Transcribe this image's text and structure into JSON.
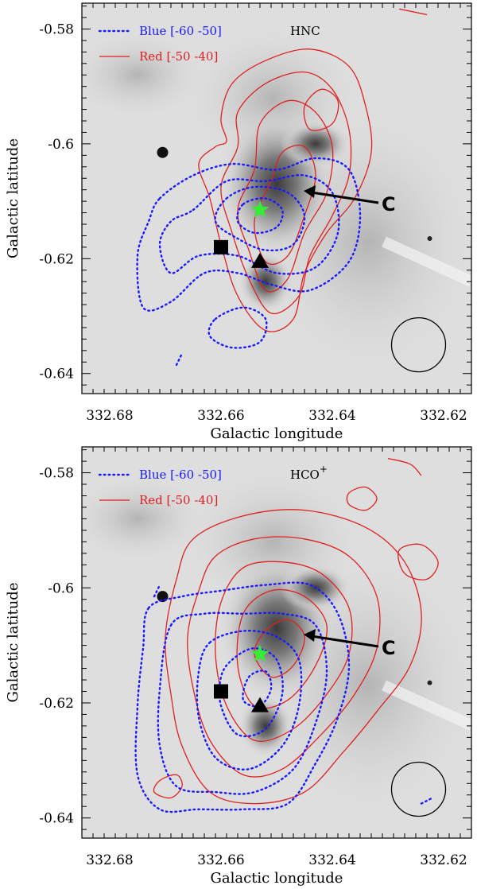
{
  "chart_data": [
    {
      "type": "contour",
      "molecule_main": "HNC",
      "molecule_sup": "",
      "xlabel": "Galactic longitude",
      "ylabel": "Galactic latitude",
      "xlim": [
        332.685,
        332.615
      ],
      "ylim": [
        -0.6435,
        -0.5755
      ],
      "x_ticks": [
        "332.68",
        "332.66",
        "332.64",
        "332.62"
      ],
      "y_ticks": [
        "-0.58",
        "-0.6",
        "-0.62",
        "-0.64"
      ],
      "legend": [
        {
          "label": "Blue [-60 -50]",
          "color": "#1a1aff",
          "style": "dotted"
        },
        {
          "label": "Red [-50 -40]",
          "color": "#e02020",
          "style": "solid"
        }
      ],
      "annotation": "C",
      "markers": [
        {
          "kind": "star",
          "x": 332.653,
          "y": -0.6115,
          "color": "#33ee33"
        },
        {
          "kind": "square",
          "x": 332.66,
          "y": -0.618,
          "color": "#000000"
        },
        {
          "kind": "triangle",
          "x": 332.653,
          "y": -0.6205,
          "color": "#000000"
        }
      ],
      "red_levels": [
        [
          [
            332.659,
            -0.5995
          ],
          [
            332.66,
            -0.5955
          ],
          [
            332.658,
            -0.5895
          ],
          [
            332.652,
            -0.5855
          ],
          [
            332.644,
            -0.5835
          ],
          [
            332.637,
            -0.5865
          ],
          [
            332.634,
            -0.5935
          ],
          [
            332.633,
            -0.6015
          ],
          [
            332.636,
            -0.6095
          ],
          [
            332.641,
            -0.6155
          ],
          [
            332.645,
            -0.6225
          ],
          [
            332.647,
            -0.6305
          ],
          [
            332.652,
            -0.6325
          ],
          [
            332.657,
            -0.6265
          ],
          [
            332.66,
            -0.6175
          ],
          [
            332.662,
            -0.6095
          ],
          [
            332.664,
            -0.6035
          ],
          [
            332.661,
            -0.6005
          ]
        ],
        [
          [
            332.657,
            -0.6005
          ],
          [
            332.657,
            -0.5945
          ],
          [
            332.652,
            -0.5895
          ],
          [
            332.645,
            -0.5875
          ],
          [
            332.64,
            -0.5905
          ],
          [
            332.637,
            -0.5975
          ],
          [
            332.637,
            -0.6055
          ],
          [
            332.64,
            -0.6125
          ],
          [
            332.644,
            -0.6195
          ],
          [
            332.646,
            -0.6265
          ],
          [
            332.651,
            -0.6295
          ],
          [
            332.655,
            -0.6235
          ],
          [
            332.658,
            -0.6155
          ],
          [
            332.66,
            -0.6075
          ]
        ],
        [
          [
            332.654,
            -0.6045
          ],
          [
            332.653,
            -0.5965
          ],
          [
            332.648,
            -0.5925
          ],
          [
            332.643,
            -0.5945
          ],
          [
            332.64,
            -0.6005
          ],
          [
            332.641,
            -0.6085
          ],
          [
            332.645,
            -0.6155
          ],
          [
            332.648,
            -0.6235
          ],
          [
            332.652,
            -0.6255
          ],
          [
            332.655,
            -0.6185
          ],
          [
            332.657,
            -0.6115
          ]
        ],
        [
          [
            332.651,
            -0.6065
          ],
          [
            332.649,
            -0.6015
          ],
          [
            332.645,
            -0.6005
          ],
          [
            332.643,
            -0.6055
          ],
          [
            332.645,
            -0.6125
          ],
          [
            332.648,
            -0.6195
          ],
          [
            332.652,
            -0.6205
          ],
          [
            332.654,
            -0.6135
          ]
        ],
        [
          [
            332.645,
            -0.5935
          ],
          [
            332.642,
            -0.5905
          ],
          [
            332.639,
            -0.5925
          ],
          [
            332.64,
            -0.5965
          ],
          [
            332.644,
            -0.5975
          ]
        ],
        [
          [
            332.623,
            -0.5775
          ],
          [
            332.628,
            -0.5765
          ]
        ]
      ],
      "blue_levels": [
        [
          [
            332.671,
            -0.6095
          ],
          [
            332.665,
            -0.6055
          ],
          [
            332.658,
            -0.6035
          ],
          [
            332.65,
            -0.6045
          ],
          [
            332.643,
            -0.6025
          ],
          [
            332.637,
            -0.6045
          ],
          [
            332.635,
            -0.6125
          ],
          [
            332.637,
            -0.6205
          ],
          [
            332.644,
            -0.6255
          ],
          [
            332.651,
            -0.6245
          ],
          [
            332.657,
            -0.6225
          ],
          [
            332.663,
            -0.6225
          ],
          [
            332.669,
            -0.6275
          ],
          [
            332.674,
            -0.6285
          ],
          [
            332.675,
            -0.6195
          ],
          [
            332.673,
            -0.6135
          ]
        ],
        [
          [
            332.665,
            -0.6115
          ],
          [
            332.659,
            -0.6065
          ],
          [
            332.652,
            -0.6065
          ],
          [
            332.645,
            -0.6055
          ],
          [
            332.64,
            -0.6085
          ],
          [
            332.639,
            -0.6155
          ],
          [
            332.643,
            -0.6215
          ],
          [
            332.65,
            -0.6225
          ],
          [
            332.657,
            -0.6195
          ],
          [
            332.664,
            -0.6195
          ],
          [
            332.669,
            -0.6225
          ],
          [
            332.671,
            -0.6175
          ],
          [
            332.669,
            -0.6135
          ]
        ],
        [
          [
            332.659,
            -0.6095
          ],
          [
            332.654,
            -0.6075
          ],
          [
            332.648,
            -0.6085
          ],
          [
            332.645,
            -0.6125
          ],
          [
            332.647,
            -0.6175
          ],
          [
            332.652,
            -0.6185
          ],
          [
            332.657,
            -0.6165
          ],
          [
            332.661,
            -0.6135
          ]
        ],
        [
          [
            332.656,
            -0.6105
          ],
          [
            332.652,
            -0.6095
          ],
          [
            332.649,
            -0.6115
          ],
          [
            332.65,
            -0.6145
          ],
          [
            332.654,
            -0.6155
          ],
          [
            332.657,
            -0.6135
          ]
        ],
        [
          [
            332.661,
            -0.6305
          ],
          [
            332.656,
            -0.6285
          ],
          [
            332.652,
            -0.6305
          ],
          [
            332.653,
            -0.6345
          ],
          [
            332.658,
            -0.6355
          ],
          [
            332.662,
            -0.6335
          ]
        ],
        [
          [
            332.668,
            -0.6385
          ],
          [
            332.667,
            -0.6365
          ]
        ]
      ]
    },
    {
      "type": "contour",
      "molecule_main": "HCO",
      "molecule_sup": "+",
      "xlabel": "Galactic longitude",
      "ylabel": "Galactic latitude",
      "xlim": [
        332.685,
        332.615
      ],
      "ylim": [
        -0.6435,
        -0.5755
      ],
      "x_ticks": [
        "332.68",
        "332.66",
        "332.64",
        "332.62"
      ],
      "y_ticks": [
        "-0.58",
        "-0.6",
        "-0.62",
        "-0.64"
      ],
      "legend": [
        {
          "label": "Blue [-60 -50]",
          "color": "#1a1aff",
          "style": "dotted"
        },
        {
          "label": "Red [-50 -40]",
          "color": "#e02020",
          "style": "solid"
        }
      ],
      "annotation": "C",
      "markers": [
        {
          "kind": "star",
          "x": 332.653,
          "y": -0.6115,
          "color": "#33ee33"
        },
        {
          "kind": "square",
          "x": 332.66,
          "y": -0.618,
          "color": "#000000"
        },
        {
          "kind": "triangle",
          "x": 332.653,
          "y": -0.6205,
          "color": "#000000"
        }
      ],
      "red_levels": [
        [
          [
            332.668,
            -0.5985
          ],
          [
            332.665,
            -0.5915
          ],
          [
            332.656,
            -0.5875
          ],
          [
            332.645,
            -0.5865
          ],
          [
            332.634,
            -0.5895
          ],
          [
            332.627,
            -0.5955
          ],
          [
            332.624,
            -0.6045
          ],
          [
            332.626,
            -0.6135
          ],
          [
            332.632,
            -0.6215
          ],
          [
            332.638,
            -0.6285
          ],
          [
            332.645,
            -0.6355
          ],
          [
            332.654,
            -0.6375
          ],
          [
            332.662,
            -0.6355
          ],
          [
            332.667,
            -0.6275
          ],
          [
            332.669,
            -0.6185
          ],
          [
            332.67,
            -0.6085
          ]
        ],
        [
          [
            332.664,
            -0.6005
          ],
          [
            332.661,
            -0.5945
          ],
          [
            332.654,
            -0.5915
          ],
          [
            332.645,
            -0.5915
          ],
          [
            332.637,
            -0.5945
          ],
          [
            332.632,
            -0.6015
          ],
          [
            332.632,
            -0.6105
          ],
          [
            332.636,
            -0.6185
          ],
          [
            332.642,
            -0.6255
          ],
          [
            332.649,
            -0.6315
          ],
          [
            332.656,
            -0.6325
          ],
          [
            332.662,
            -0.6265
          ],
          [
            332.665,
            -0.6175
          ],
          [
            332.666,
            -0.6085
          ]
        ],
        [
          [
            332.66,
            -0.6025
          ],
          [
            332.656,
            -0.5965
          ],
          [
            332.649,
            -0.5955
          ],
          [
            332.642,
            -0.5975
          ],
          [
            332.637,
            -0.6035
          ],
          [
            332.637,
            -0.6115
          ],
          [
            332.641,
            -0.6185
          ],
          [
            332.647,
            -0.6245
          ],
          [
            332.654,
            -0.6265
          ],
          [
            332.659,
            -0.6205
          ],
          [
            332.661,
            -0.6115
          ]
        ],
        [
          [
            332.656,
            -0.6045
          ],
          [
            332.651,
            -0.6005
          ],
          [
            332.645,
            -0.6015
          ],
          [
            332.641,
            -0.6065
          ],
          [
            332.643,
            -0.6135
          ],
          [
            332.648,
            -0.6195
          ],
          [
            332.654,
            -0.6205
          ],
          [
            332.657,
            -0.6135
          ]
        ],
        [
          [
            332.652,
            -0.6075
          ],
          [
            332.648,
            -0.6055
          ],
          [
            332.645,
            -0.6085
          ],
          [
            332.647,
            -0.6135
          ],
          [
            332.651,
            -0.6155
          ],
          [
            332.654,
            -0.6115
          ]
        ],
        [
          [
            332.637,
            -0.5835
          ],
          [
            332.634,
            -0.5825
          ],
          [
            332.632,
            -0.5845
          ],
          [
            332.634,
            -0.5865
          ],
          [
            332.637,
            -0.5855
          ]
        ],
        [
          [
            332.628,
            -0.5935
          ],
          [
            332.624,
            -0.5925
          ],
          [
            332.621,
            -0.5955
          ],
          [
            332.623,
            -0.5985
          ],
          [
            332.627,
            -0.5975
          ]
        ],
        [
          [
            332.671,
            -0.6335
          ],
          [
            332.668,
            -0.6325
          ],
          [
            332.667,
            -0.6345
          ],
          [
            332.669,
            -0.6365
          ],
          [
            332.672,
            -0.6355
          ]
        ],
        [
          [
            332.63,
            -0.5775
          ],
          [
            332.626,
            -0.5785
          ],
          [
            332.624,
            -0.5805
          ]
        ]
      ],
      "blue_levels": [
        [
          [
            332.673,
            -0.6035
          ],
          [
            332.667,
            -0.6015
          ],
          [
            332.66,
            -0.6005
          ],
          [
            332.652,
            -0.5995
          ],
          [
            332.644,
            -0.5995
          ],
          [
            332.639,
            -0.6045
          ],
          [
            332.637,
            -0.6135
          ],
          [
            332.639,
            -0.6225
          ],
          [
            332.643,
            -0.6305
          ],
          [
            332.648,
            -0.6375
          ],
          [
            332.656,
            -0.6385
          ],
          [
            332.664,
            -0.6385
          ],
          [
            332.671,
            -0.6385
          ],
          [
            332.675,
            -0.6325
          ],
          [
            332.675,
            -0.6205
          ],
          [
            332.674,
            -0.6105
          ]
        ],
        [
          [
            332.669,
            -0.6065
          ],
          [
            332.663,
            -0.6045
          ],
          [
            332.656,
            -0.6045
          ],
          [
            332.649,
            -0.6045
          ],
          [
            332.643,
            -0.6065
          ],
          [
            332.641,
            -0.6145
          ],
          [
            332.643,
            -0.6235
          ],
          [
            332.647,
            -0.6315
          ],
          [
            332.654,
            -0.6355
          ],
          [
            332.661,
            -0.6355
          ],
          [
            332.668,
            -0.6345
          ],
          [
            332.671,
            -0.6275
          ],
          [
            332.671,
            -0.6175
          ]
        ],
        [
          [
            332.662,
            -0.6095
          ],
          [
            332.656,
            -0.6075
          ],
          [
            332.65,
            -0.6085
          ],
          [
            332.646,
            -0.6125
          ],
          [
            332.646,
            -0.6205
          ],
          [
            332.649,
            -0.6275
          ],
          [
            332.655,
            -0.6315
          ],
          [
            332.661,
            -0.6295
          ],
          [
            332.664,
            -0.6225
          ],
          [
            332.664,
            -0.6145
          ]
        ],
        [
          [
            332.658,
            -0.6125
          ],
          [
            332.654,
            -0.6105
          ],
          [
            332.65,
            -0.6125
          ],
          [
            332.649,
            -0.6185
          ],
          [
            332.652,
            -0.6245
          ],
          [
            332.657,
            -0.6255
          ],
          [
            332.66,
            -0.6205
          ],
          [
            332.66,
            -0.6155
          ]
        ],
        [
          [
            332.655,
            -0.6155
          ],
          [
            332.652,
            -0.6145
          ],
          [
            332.651,
            -0.6175
          ],
          [
            332.653,
            -0.6205
          ],
          [
            332.656,
            -0.6195
          ]
        ],
        [
          [
            332.672,
            -0.6015
          ],
          [
            332.671,
            -0.5995
          ]
        ],
        [
          [
            332.624,
            -0.6375
          ],
          [
            332.622,
            -0.6365
          ]
        ]
      ]
    }
  ]
}
